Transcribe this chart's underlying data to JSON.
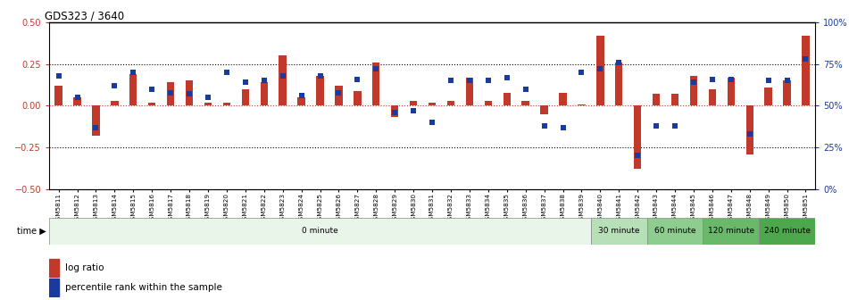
{
  "title": "GDS323 / 3640",
  "samples": [
    "GSM5811",
    "GSM5812",
    "GSM5813",
    "GSM5814",
    "GSM5815",
    "GSM5816",
    "GSM5817",
    "GSM5818",
    "GSM5819",
    "GSM5820",
    "GSM5821",
    "GSM5822",
    "GSM5823",
    "GSM5824",
    "GSM5825",
    "GSM5826",
    "GSM5827",
    "GSM5828",
    "GSM5829",
    "GSM5830",
    "GSM5831",
    "GSM5832",
    "GSM5833",
    "GSM5834",
    "GSM5835",
    "GSM5836",
    "GSM5837",
    "GSM5838",
    "GSM5839",
    "GSM5840",
    "GSM5841",
    "GSM5842",
    "GSM5843",
    "GSM5844",
    "GSM5845",
    "GSM5846",
    "GSM5847",
    "GSM5848",
    "GSM5849",
    "GSM5850",
    "GSM5851"
  ],
  "log_ratio": [
    0.12,
    0.05,
    -0.18,
    0.03,
    0.19,
    0.02,
    0.14,
    0.15,
    0.02,
    0.02,
    0.1,
    0.14,
    0.3,
    0.05,
    0.18,
    0.12,
    0.09,
    0.26,
    -0.07,
    0.03,
    0.02,
    0.03,
    0.17,
    0.03,
    0.08,
    0.03,
    -0.05,
    0.08,
    0.01,
    0.42,
    0.26,
    -0.38,
    0.07,
    0.07,
    0.18,
    0.1,
    0.17,
    -0.29,
    0.11,
    0.15,
    0.42
  ],
  "percentile": [
    68,
    55,
    37,
    62,
    70,
    60,
    58,
    57,
    55,
    70,
    64,
    65,
    68,
    56,
    68,
    58,
    66,
    72,
    46,
    47,
    40,
    65,
    65,
    65,
    67,
    60,
    38,
    37,
    70,
    72,
    76,
    20,
    38,
    38,
    64,
    66,
    66,
    33,
    65,
    65,
    78
  ],
  "time_groups": [
    {
      "label": "0 minute",
      "start": 0,
      "end": 29,
      "color": "#eaf5ea"
    },
    {
      "label": "30 minute",
      "start": 29,
      "end": 32,
      "color": "#b8e0b8"
    },
    {
      "label": "60 minute",
      "start": 32,
      "end": 35,
      "color": "#8fcc8f"
    },
    {
      "label": "120 minute",
      "start": 35,
      "end": 38,
      "color": "#6ab86a"
    },
    {
      "label": "240 minute",
      "start": 38,
      "end": 41,
      "color": "#4da84d"
    }
  ],
  "bar_color": "#c0392b",
  "dot_color": "#1a3a9e",
  "ylim": [
    -0.5,
    0.5
  ],
  "y2lim": [
    0,
    100
  ],
  "yticks_left": [
    -0.5,
    -0.25,
    0.0,
    0.25,
    0.5
  ],
  "yticks_right": [
    0,
    25,
    50,
    75,
    100
  ],
  "hlines_dotted": [
    -0.25,
    0.25
  ],
  "hline_red": 0.0,
  "background_color": "#ffffff"
}
